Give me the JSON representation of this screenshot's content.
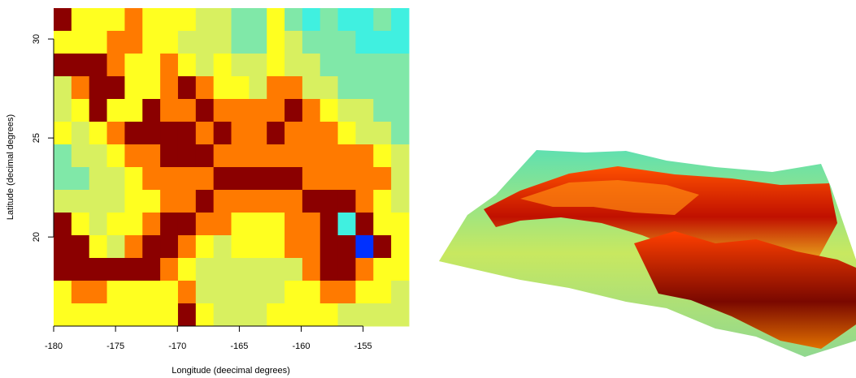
{
  "chart_data": {
    "type": "heatmap",
    "x_label": "Longitude (deecimal degrees)",
    "y_label": "Latitude (decimal degrees)",
    "xlim": [
      -180,
      -151.3
    ],
    "ylim": [
      15.5,
      31.56
    ],
    "xticks": [
      -180,
      -175,
      -170,
      -165,
      -160,
      -155
    ],
    "yticks": [
      20,
      25,
      30
    ],
    "colors": [
      "#0030ff",
      "#40f0e0",
      "#80e8a8",
      "#d8f060",
      "#ffff20",
      "#ff7a00",
      "#8b0000"
    ],
    "values": [
      [
        6,
        4,
        4,
        4,
        5,
        4,
        4,
        4,
        3,
        3,
        2,
        2,
        4,
        2,
        1,
        2,
        1,
        1,
        2,
        1
      ],
      [
        4,
        4,
        4,
        5,
        5,
        4,
        4,
        3,
        3,
        3,
        2,
        2,
        4,
        3,
        2,
        2,
        2,
        1,
        1,
        1
      ],
      [
        6,
        6,
        6,
        5,
        4,
        4,
        5,
        4,
        3,
        4,
        3,
        3,
        4,
        3,
        3,
        2,
        2,
        2,
        2,
        2
      ],
      [
        3,
        5,
        6,
        6,
        4,
        4,
        5,
        6,
        5,
        4,
        4,
        3,
        5,
        5,
        3,
        3,
        2,
        2,
        2,
        2
      ],
      [
        3,
        4,
        6,
        4,
        4,
        6,
        5,
        5,
        6,
        5,
        5,
        5,
        5,
        6,
        5,
        4,
        3,
        3,
        2,
        2
      ],
      [
        4,
        3,
        4,
        5,
        6,
        6,
        6,
        6,
        5,
        6,
        5,
        5,
        6,
        5,
        5,
        5,
        4,
        3,
        3,
        2
      ],
      [
        2,
        3,
        3,
        4,
        5,
        5,
        6,
        6,
        6,
        5,
        5,
        5,
        5,
        5,
        5,
        5,
        5,
        5,
        4,
        3
      ],
      [
        2,
        2,
        3,
        3,
        4,
        5,
        5,
        5,
        5,
        6,
        6,
        6,
        6,
        6,
        5,
        5,
        5,
        5,
        5,
        3
      ],
      [
        3,
        3,
        3,
        3,
        4,
        4,
        5,
        5,
        6,
        5,
        5,
        5,
        5,
        5,
        6,
        6,
        6,
        5,
        4,
        3
      ],
      [
        6,
        4,
        3,
        4,
        4,
        5,
        6,
        6,
        5,
        5,
        4,
        4,
        4,
        5,
        5,
        6,
        1,
        6,
        4,
        4
      ],
      [
        6,
        6,
        4,
        3,
        5,
        6,
        6,
        5,
        4,
        3,
        4,
        4,
        4,
        5,
        5,
        6,
        6,
        0,
        6,
        4
      ],
      [
        6,
        6,
        6,
        6,
        6,
        6,
        5,
        4,
        3,
        3,
        3,
        3,
        3,
        3,
        5,
        6,
        6,
        5,
        4,
        4
      ],
      [
        4,
        5,
        5,
        4,
        4,
        4,
        4,
        5,
        3,
        3,
        3,
        3,
        3,
        4,
        4,
        5,
        5,
        4,
        4,
        3
      ],
      [
        4,
        4,
        4,
        4,
        4,
        4,
        4,
        6,
        4,
        3,
        3,
        3,
        4,
        4,
        4,
        4,
        3,
        3,
        3,
        3
      ]
    ]
  }
}
